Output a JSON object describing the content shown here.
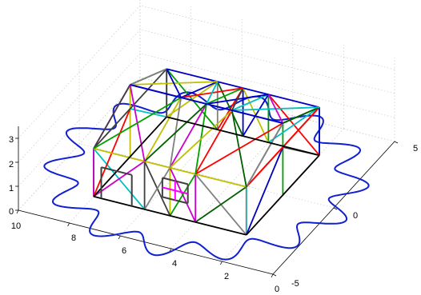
{
  "chart_data": {
    "type": "line",
    "subtype": "3d-wireframe",
    "title": "",
    "xlabel": "",
    "ylabel": "",
    "zlabel": "",
    "xlim": [
      0,
      10
    ],
    "ylim": [
      -5,
      5
    ],
    "zlim": [
      0,
      3.5
    ],
    "x_ticks": [
      "10",
      "8",
      "6",
      "4",
      "2",
      "0"
    ],
    "y_ticks": [
      "5",
      "0",
      "-5"
    ],
    "z_ticks": [
      "3",
      "2",
      "1",
      "0"
    ],
    "grid": true,
    "box": true,
    "colors": {
      "ground_curve": "#1020d0",
      "wall_front": "#808080",
      "outline": "#ff0000",
      "door_frame": "#404040",
      "window_frame": "#404040",
      "window_cross": "#ff00ff",
      "roof_ridge": "#0000c0"
    },
    "ground_curve": {
      "description_free": true,
      "z": 0,
      "center": [
        5,
        0
      ],
      "base_radius": 5.2,
      "wave_amplitude": 0.6,
      "wave_count": 14
    },
    "house": {
      "x_range": [
        2,
        8
      ],
      "y_range": [
        -3,
        3
      ],
      "wall_height": 2,
      "ridge_height": 3,
      "bar_colors": [
        "#ff0000",
        "#00c0c0",
        "#cc00cc",
        "#00a000",
        "#c0c000",
        "#0000c0",
        "#404040",
        "#808080",
        "#006000"
      ]
    }
  }
}
